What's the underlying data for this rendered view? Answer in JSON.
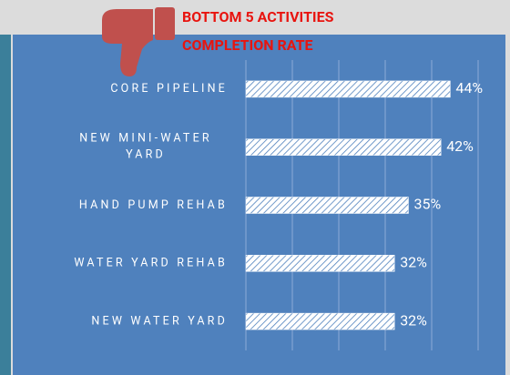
{
  "chart_data": {
    "type": "hbar",
    "title_lines": [
      "BOTTOM 5 ACTIVITIES",
      "COMPLETION RATE"
    ],
    "categories": [
      "CORE PIPELINE",
      "NEW MINI-WATER YARD",
      "HAND PUMP REHAB",
      "WATER YARD REHAB",
      "NEW WATER YARD"
    ],
    "values": [
      44,
      42,
      35,
      32,
      32
    ],
    "value_labels": [
      "44%",
      "42%",
      "35%",
      "32%",
      "32%"
    ],
    "color": "#ffffff",
    "xlim": [
      0,
      50
    ],
    "xticks": [
      0,
      10,
      20,
      30,
      40,
      50
    ],
    "grid": true
  }
}
